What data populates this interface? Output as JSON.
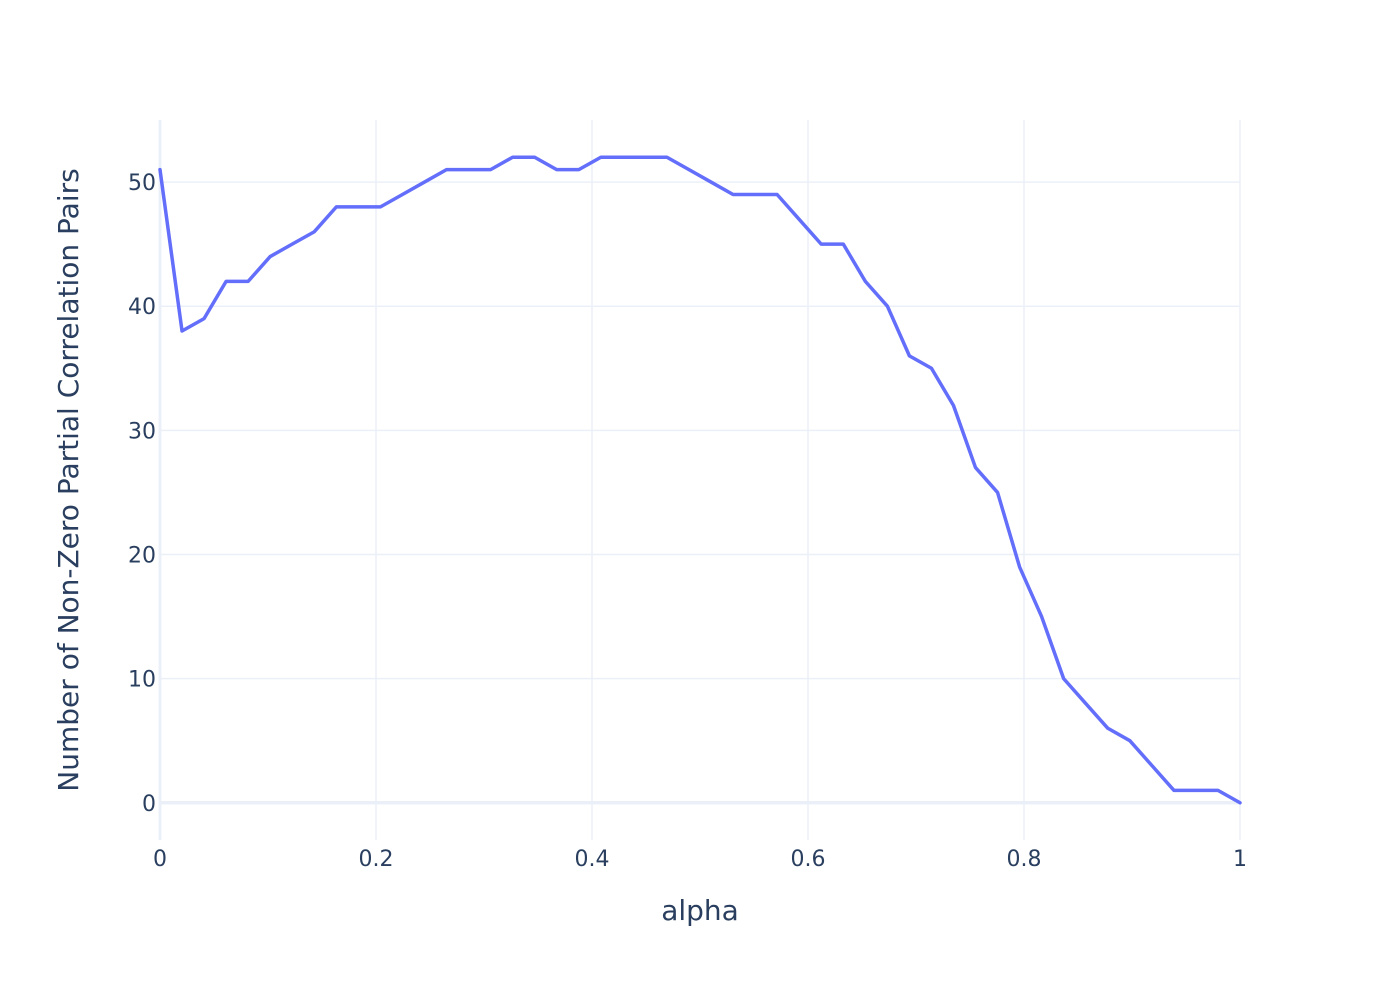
{
  "chart_data": {
    "type": "line",
    "title": "",
    "xlabel": "alpha",
    "ylabel": "Number of Non-Zero Partial Correlation Pairs",
    "xlim": [
      0,
      1
    ],
    "ylim": [
      -3,
      55
    ],
    "x_ticks": [
      0,
      0.2,
      0.4,
      0.6,
      0.8,
      1
    ],
    "x_tick_labels": [
      "0",
      "0.2",
      "0.4",
      "0.6",
      "0.8",
      "1"
    ],
    "y_ticks": [
      0,
      10,
      20,
      30,
      40,
      50
    ],
    "y_tick_labels": [
      "0",
      "10",
      "20",
      "30",
      "40",
      "50"
    ],
    "grid": true,
    "legend": "none",
    "line_color": "#636efa",
    "grid_color": "#ebf0f8",
    "zeroline_color": "#ebf0f8",
    "series": [
      {
        "x": [
          0,
          0.0204,
          0.0408,
          0.0612,
          0.0816,
          0.102,
          0.1224,
          0.1429,
          0.1633,
          0.1837,
          0.2041,
          0.2245,
          0.2449,
          0.2653,
          0.2857,
          0.3061,
          0.3265,
          0.3469,
          0.3673,
          0.3878,
          0.4082,
          0.4286,
          0.449,
          0.4694,
          0.4898,
          0.5102,
          0.5306,
          0.551,
          0.5714,
          0.5918,
          0.6122,
          0.6327,
          0.6531,
          0.6735,
          0.6939,
          0.7143,
          0.7347,
          0.7551,
          0.7755,
          0.7959,
          0.8163,
          0.8367,
          0.8571,
          0.8776,
          0.898,
          0.9184,
          0.9388,
          0.9592,
          0.9796,
          1
        ],
        "values": [
          51,
          38,
          39,
          42,
          42,
          44,
          45,
          46,
          48,
          48,
          48,
          49,
          50,
          51,
          51,
          51,
          52,
          52,
          51,
          51,
          52,
          52,
          52,
          52,
          51,
          50,
          49,
          49,
          49,
          47,
          45,
          45,
          42,
          40,
          36,
          35,
          32,
          27,
          25,
          19,
          15,
          10,
          8,
          6,
          5,
          3,
          1,
          1,
          1,
          0
        ]
      }
    ]
  }
}
